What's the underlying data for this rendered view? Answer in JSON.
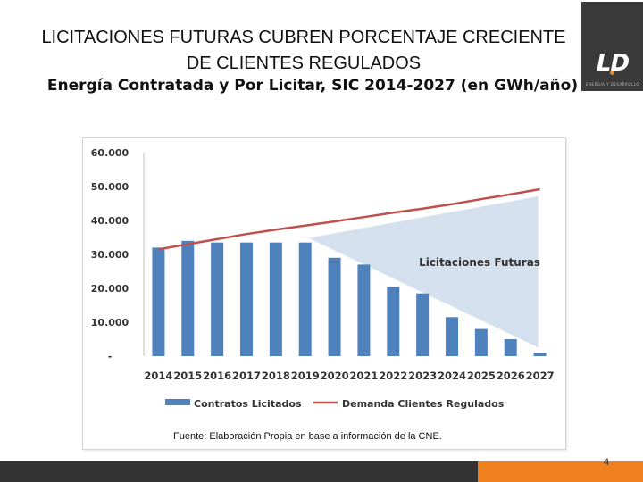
{
  "slide": {
    "title_line1": "LICITACIONES FUTURAS CUBREN PORCENTAJE CRECIENTE",
    "title_line2": "DE CLIENTES REGULADOS",
    "subtitle": "Energía Contratada y Por Licitar, SIC 2014-2027 (en GWh/año)",
    "source": "Fuente:  Elaboración Propia en base a información de la CNE.",
    "page_number": "4"
  },
  "logo": {
    "mark": "LD",
    "tagline": "ENERGIA Y DESARROLLO"
  },
  "colors": {
    "bars": "#4f81bd",
    "demand_line": "#c0504d",
    "triangle": "#d5e0ee",
    "accent_orange": "#f07f1e",
    "dark_bar": "#333333"
  },
  "chart_data": {
    "type": "bar",
    "title": "",
    "xlabel": "",
    "ylabel": "",
    "ylim": [
      0,
      60000
    ],
    "y_ticks": [
      {
        "value": 0,
        "label": "-"
      },
      {
        "value": 10000,
        "label": "10.000"
      },
      {
        "value": 20000,
        "label": "20.000"
      },
      {
        "value": 30000,
        "label": "30.000"
      },
      {
        "value": 40000,
        "label": "40.000"
      },
      {
        "value": 50000,
        "label": "50.000"
      },
      {
        "value": 60000,
        "label": "60.000"
      }
    ],
    "categories": [
      "2014",
      "2015",
      "2016",
      "2017",
      "2018",
      "2019",
      "2020",
      "2021",
      "2022",
      "2023",
      "2024",
      "2025",
      "2026",
      "2027"
    ],
    "series": [
      {
        "name": "Contratos Licitados",
        "type": "bar",
        "values": [
          32000,
          34000,
          33500,
          33500,
          33500,
          33500,
          29000,
          27000,
          20500,
          18500,
          11500,
          8000,
          5000,
          1000
        ]
      },
      {
        "name": "Demanda Clientes Regulados",
        "type": "line",
        "values": [
          31500,
          33000,
          34500,
          36000,
          37300,
          38500,
          39700,
          41000,
          42300,
          43500,
          44800,
          46300,
          47700,
          49200
        ]
      }
    ],
    "annotation": "Licitaciones Futuras",
    "legend_position": "bottom"
  }
}
